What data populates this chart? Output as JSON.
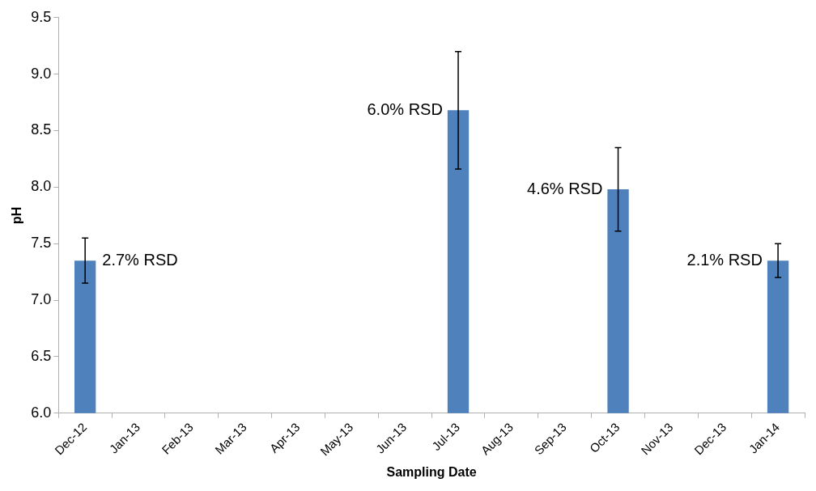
{
  "chart_data": {
    "type": "bar",
    "xlabel": "Sampling Date",
    "ylabel": "pH",
    "categories": [
      "Dec-12",
      "Jan-13",
      "Feb-13",
      "Mar-13",
      "Apr-13",
      "May-13",
      "Jun-13",
      "Jul-13",
      "Aug-13",
      "Sep-13",
      "Oct-13",
      "Nov-13",
      "Dec-13",
      "Jan-14"
    ],
    "values": [
      7.35,
      null,
      null,
      null,
      null,
      null,
      null,
      8.68,
      null,
      null,
      7.98,
      null,
      null,
      7.35
    ],
    "errors": [
      0.2,
      null,
      null,
      null,
      null,
      null,
      null,
      0.52,
      null,
      null,
      0.37,
      null,
      null,
      0.15
    ],
    "color": "#4f81bd",
    "ylim": [
      6.0,
      9.5
    ],
    "yticks": [
      {
        "value": 6,
        "label": "6.0"
      },
      {
        "value": 6.5,
        "label": "6.5"
      },
      {
        "value": 7,
        "label": "7.0"
      },
      {
        "value": 7.5,
        "label": "7.5"
      },
      {
        "value": 8,
        "label": "8.0"
      },
      {
        "value": 8.5,
        "label": "8.5"
      },
      {
        "value": 9,
        "label": "9.0"
      },
      {
        "value": 9.5,
        "label": "9.5"
      }
    ],
    "annotations": [
      {
        "text": "2.7% RSD",
        "x": "Dec-12",
        "y": 7.35
      },
      {
        "text": "6.0% RSD",
        "x": "Jul-13",
        "y": 8.68
      },
      {
        "text": "4.6% RSD",
        "x": "Oct-13",
        "y": 7.98
      },
      {
        "text": "2.1% RSD",
        "x": "Jan-14",
        "y": 7.35
      }
    ],
    "grid": false,
    "legend": false
  }
}
